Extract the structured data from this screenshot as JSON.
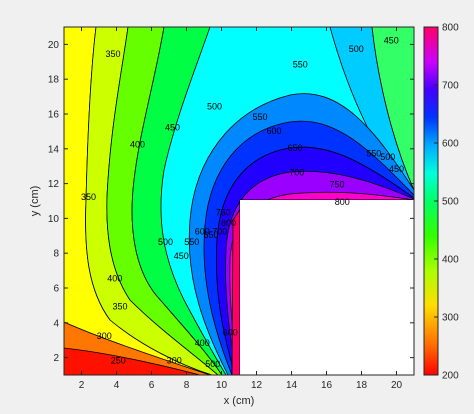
{
  "chart_data": {
    "type": "contour",
    "xlabel": "x (cm)",
    "ylabel": "y (cm)",
    "xlim": [
      1,
      21
    ],
    "ylim": [
      1,
      21
    ],
    "xticks": [
      2,
      4,
      6,
      8,
      10,
      12,
      14,
      16,
      18,
      20
    ],
    "yticks": [
      2,
      4,
      6,
      8,
      10,
      12,
      14,
      16,
      18,
      20
    ],
    "colorbar": {
      "range": [
        200,
        800
      ],
      "ticks": [
        200,
        300,
        400,
        500,
        600,
        700,
        800
      ],
      "colors": [
        "#ff0000",
        "#ff6600",
        "#ffcc00",
        "#ccff00",
        "#66ff00",
        "#00ff00",
        "#00ff66",
        "#00ffcc",
        "#00ccff",
        "#0066ff",
        "#0000ff",
        "#6600ff",
        "#cc00ff",
        "#ff00cc",
        "#ff0066"
      ]
    },
    "levels": [
      250,
      300,
      350,
      400,
      450,
      500,
      550,
      600,
      650,
      700,
      750,
      800
    ],
    "blank_region": {
      "x": [
        10.9,
        21
      ],
      "y": [
        1,
        10.9
      ],
      "fill": "#ffffff"
    },
    "contour_labels": [
      {
        "text": "350",
        "x": 3.8,
        "y": 19.4
      },
      {
        "text": "400",
        "x": 5.2,
        "y": 14.2
      },
      {
        "text": "450",
        "x": 7.2,
        "y": 15.2
      },
      {
        "text": "500",
        "x": 9.6,
        "y": 16.4
      },
      {
        "text": "550",
        "x": 12.2,
        "y": 15.8
      },
      {
        "text": "600",
        "x": 13.0,
        "y": 15.0
      },
      {
        "text": "650",
        "x": 14.2,
        "y": 14.0
      },
      {
        "text": "700",
        "x": 14.3,
        "y": 12.6
      },
      {
        "text": "750",
        "x": 16.6,
        "y": 11.9
      },
      {
        "text": "800",
        "x": 16.9,
        "y": 10.9
      },
      {
        "text": "550",
        "x": 14.5,
        "y": 18.8
      },
      {
        "text": "500",
        "x": 17.7,
        "y": 19.7
      },
      {
        "text": "450",
        "x": 19.7,
        "y": 20.2
      },
      {
        "text": "550",
        "x": 18.7,
        "y": 13.7
      },
      {
        "text": "500",
        "x": 19.5,
        "y": 13.5
      },
      {
        "text": "450",
        "x": 20.0,
        "y": 12.8
      },
      {
        "text": "350",
        "x": 2.4,
        "y": 11.2
      },
      {
        "text": "400",
        "x": 3.9,
        "y": 6.5
      },
      {
        "text": "350",
        "x": 4.2,
        "y": 4.9
      },
      {
        "text": "300",
        "x": 3.3,
        "y": 3.2
      },
      {
        "text": "250",
        "x": 4.1,
        "y": 1.8
      },
      {
        "text": "500",
        "x": 6.8,
        "y": 8.6
      },
      {
        "text": "450",
        "x": 7.7,
        "y": 7.8
      },
      {
        "text": "550",
        "x": 8.3,
        "y": 8.6
      },
      {
        "text": "600",
        "x": 8.9,
        "y": 9.2
      },
      {
        "text": "650",
        "x": 9.4,
        "y": 9.0
      },
      {
        "text": "700",
        "x": 9.9,
        "y": 9.2
      },
      {
        "text": "750",
        "x": 10.1,
        "y": 10.3
      },
      {
        "text": "800",
        "x": 10.4,
        "y": 9.7
      },
      {
        "text": "600",
        "x": 10.5,
        "y": 3.4
      },
      {
        "text": "300",
        "x": 7.3,
        "y": 1.8
      },
      {
        "text": "400",
        "x": 8.9,
        "y": 2.8
      },
      {
        "text": "500",
        "x": 9.5,
        "y": 1.6
      }
    ]
  }
}
